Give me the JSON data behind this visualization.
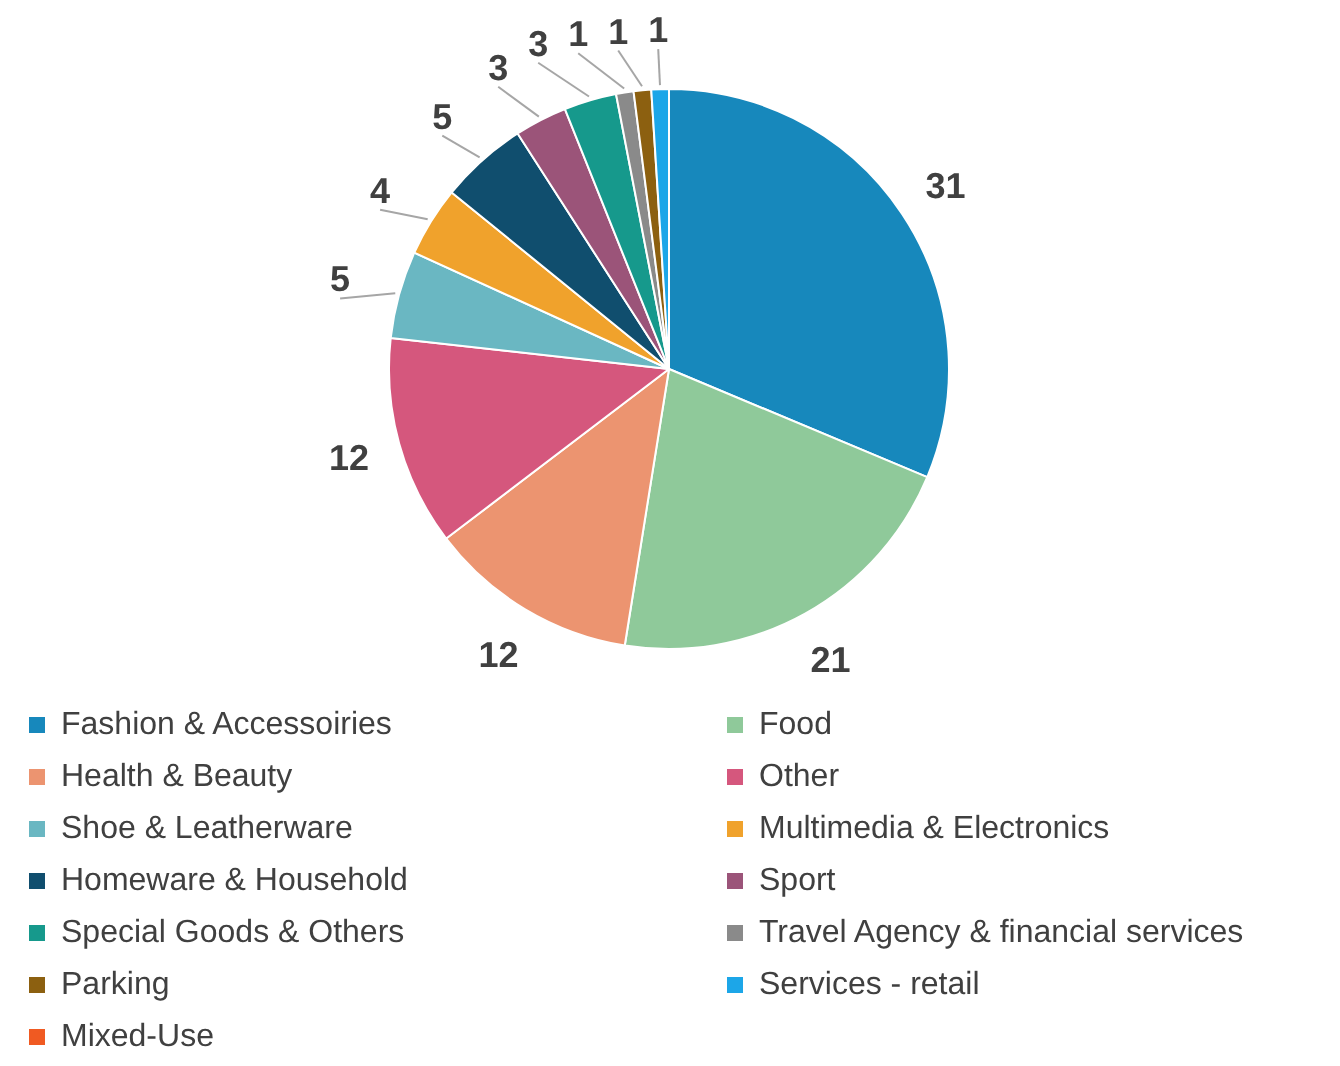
{
  "chart_data": {
    "type": "pie",
    "categories": [
      "Fashion & Accessoiries",
      "Food",
      "Health & Beauty",
      "Other",
      "Shoe & Leatherware",
      "Multimedia & Electronics",
      "Homeware & Household",
      "Sport",
      "Special Goods & Others",
      "Travel Agency & financial services",
      "Parking",
      "Services - retail",
      "Mixed-Use"
    ],
    "values": [
      31,
      21,
      12,
      12,
      5,
      4,
      5,
      3,
      3,
      1,
      1,
      1,
      0
    ],
    "value_labels": [
      "31",
      "21",
      "12",
      "12",
      "5",
      "4",
      "5",
      "3",
      "3",
      "1",
      "1",
      "1",
      null
    ],
    "colors": [
      "#1788bc",
      "#8fc99a",
      "#ec9470",
      "#d5577d",
      "#6ab7c2",
      "#f0a22c",
      "#104e6e",
      "#9b5479",
      "#16998c",
      "#8a8a8a",
      "#8c6010",
      "#1ca6e8",
      "#f05a22"
    ],
    "legend": "bottom"
  }
}
